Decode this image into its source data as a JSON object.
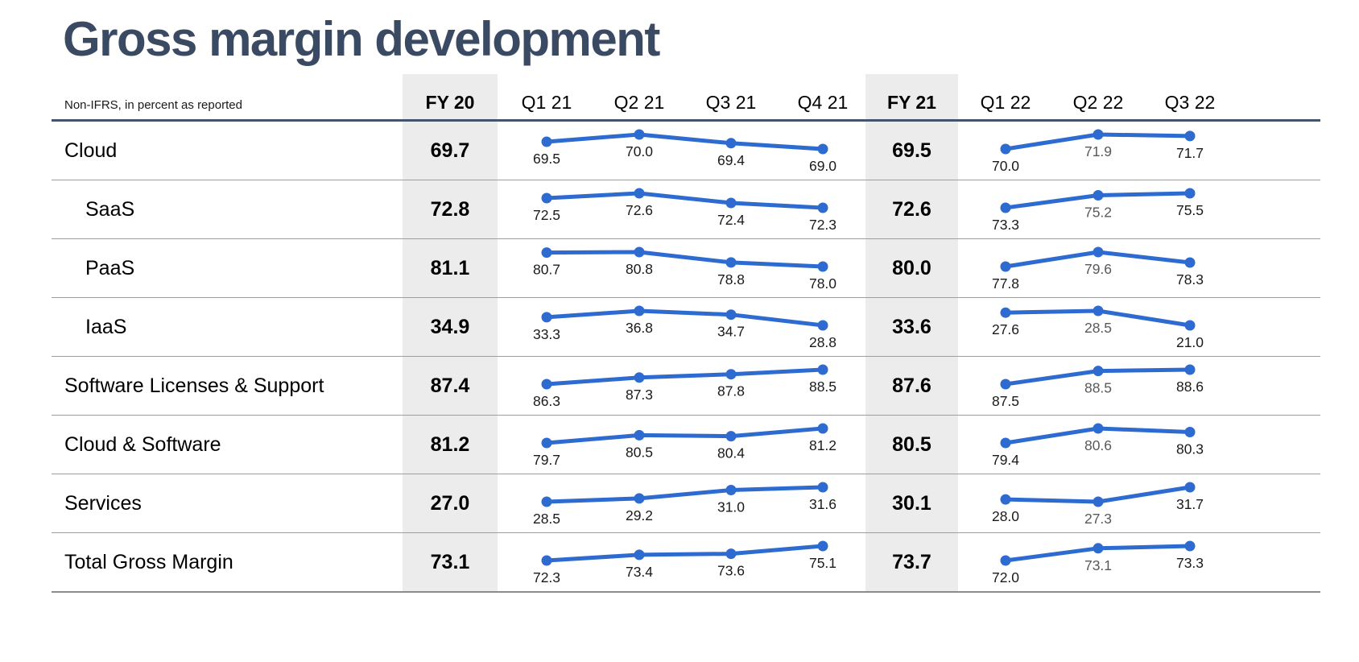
{
  "slide": {
    "title": "Gross margin development",
    "subtitle": "Non-IFRS, in percent as reported"
  },
  "header": {
    "columns": [
      "FY 20",
      "Q1 21",
      "Q2 21",
      "Q3 21",
      "Q4 21",
      "FY 21",
      "Q1 22",
      "Q2 22",
      "Q3 22"
    ]
  },
  "colors": {
    "title": "#3b4a63",
    "line_blue": "#2e6bd0",
    "fy_column_bg": "#ececec",
    "label_default": "#1a1a1a",
    "label_muted": "#595959",
    "header_rule": "#44546a"
  },
  "chart_data": {
    "type": "line",
    "title": "Gross margin development",
    "subtitle": "Non-IFRS, in percent as reported",
    "categories_fy21": [
      "Q1 21",
      "Q2 21",
      "Q3 21",
      "Q4 21"
    ],
    "categories_fy22": [
      "Q1 22",
      "Q2 22",
      "Q3 22"
    ],
    "rows": [
      {
        "label": "Cloud",
        "indent": false,
        "fy20": 69.7,
        "fy21_quarters": [
          69.5,
          70.0,
          69.4,
          69.0
        ],
        "fy21": 69.5,
        "fy22_quarters": [
          70.0,
          71.9,
          71.7
        ]
      },
      {
        "label": "SaaS",
        "indent": true,
        "fy20": 72.8,
        "fy21_quarters": [
          72.5,
          72.6,
          72.4,
          72.3
        ],
        "fy21": 72.6,
        "fy22_quarters": [
          73.3,
          75.2,
          75.5
        ]
      },
      {
        "label": "PaaS",
        "indent": true,
        "fy20": 81.1,
        "fy21_quarters": [
          80.7,
          80.8,
          78.8,
          78.0
        ],
        "fy21": 80.0,
        "fy22_quarters": [
          77.8,
          79.6,
          78.3
        ]
      },
      {
        "label": "IaaS",
        "indent": true,
        "fy20": 34.9,
        "fy21_quarters": [
          33.3,
          36.8,
          34.7,
          28.8
        ],
        "fy21": 33.6,
        "fy22_quarters": [
          27.6,
          28.5,
          21.0
        ]
      },
      {
        "label": "Software Licenses & Support",
        "indent": false,
        "fy20": 87.4,
        "fy21_quarters": [
          86.3,
          87.3,
          87.8,
          88.5
        ],
        "fy21": 87.6,
        "fy22_quarters": [
          87.5,
          88.5,
          88.6
        ]
      },
      {
        "label": "Cloud & Software",
        "indent": false,
        "fy20": 81.2,
        "fy21_quarters": [
          79.7,
          80.5,
          80.4,
          81.2
        ],
        "fy21": 80.5,
        "fy22_quarters": [
          79.4,
          80.6,
          80.3
        ]
      },
      {
        "label": "Services",
        "indent": false,
        "fy20": 27.0,
        "fy21_quarters": [
          28.5,
          29.2,
          31.0,
          31.6
        ],
        "fy21": 30.1,
        "fy22_quarters": [
          28.0,
          27.3,
          31.7
        ]
      },
      {
        "label": "Total Gross Margin",
        "indent": false,
        "fy20": 73.1,
        "fy21_quarters": [
          72.3,
          73.4,
          73.6,
          75.1
        ],
        "fy21": 73.7,
        "fy22_quarters": [
          72.0,
          73.1,
          73.3
        ]
      }
    ]
  }
}
